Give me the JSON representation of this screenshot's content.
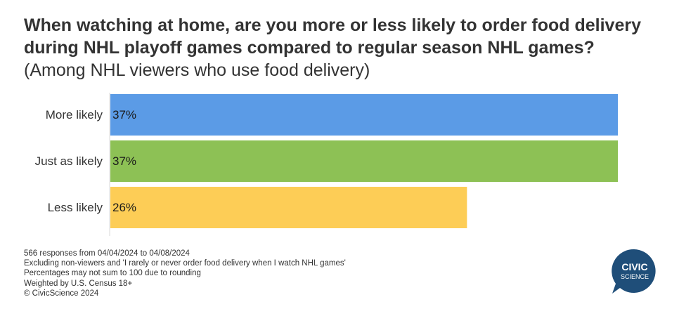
{
  "title": {
    "bold": "When watching at home, are you more or less likely to order food delivery during NHL playoff games compared to regular season NHL games?",
    "normal": "(Among NHL viewers who use food delivery)"
  },
  "chart_data": {
    "type": "bar",
    "orientation": "horizontal",
    "categories": [
      "More likely",
      "Just as likely",
      "Less likely"
    ],
    "values": [
      37,
      37,
      26
    ],
    "value_labels": [
      "37%",
      "37%",
      "26%"
    ],
    "colors": [
      "#5b9be6",
      "#8dc155",
      "#fdcd56"
    ],
    "xlim": [
      0,
      37
    ],
    "grid": false,
    "legend": "none"
  },
  "notes": [
    "566 responses from 04/04/2024 to 04/08/2024",
    "Excluding non-viewers and 'I rarely or never order food delivery when I watch NHL games'",
    "Percentages may not sum to 100 due to rounding",
    "Weighted by U.S. Census 18+",
    "© CivicScience 2024"
  ],
  "logo": {
    "line1": "CIVIC",
    "line2": "SCIENCE",
    "color": "#1f4e79"
  }
}
